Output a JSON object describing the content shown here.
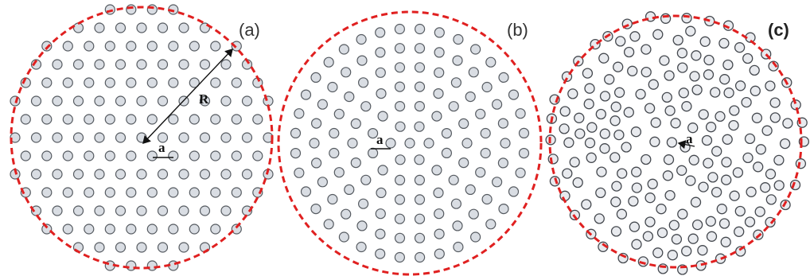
{
  "panels": [
    {
      "id": "a",
      "label": "(a)",
      "lattice": "triangular",
      "spacing_label": "a",
      "radius_label": "R"
    },
    {
      "id": "b",
      "label": "(b)",
      "lattice": "quasi-crystal",
      "spacing_label": "a"
    },
    {
      "id": "c",
      "label": "(c)",
      "lattice": "random",
      "spacing_label": "a"
    }
  ],
  "colors": {
    "boundary": "#e02020",
    "hole_fill": "#d9dde3",
    "hole_stroke": "#555a60",
    "dimension": "#111111"
  }
}
